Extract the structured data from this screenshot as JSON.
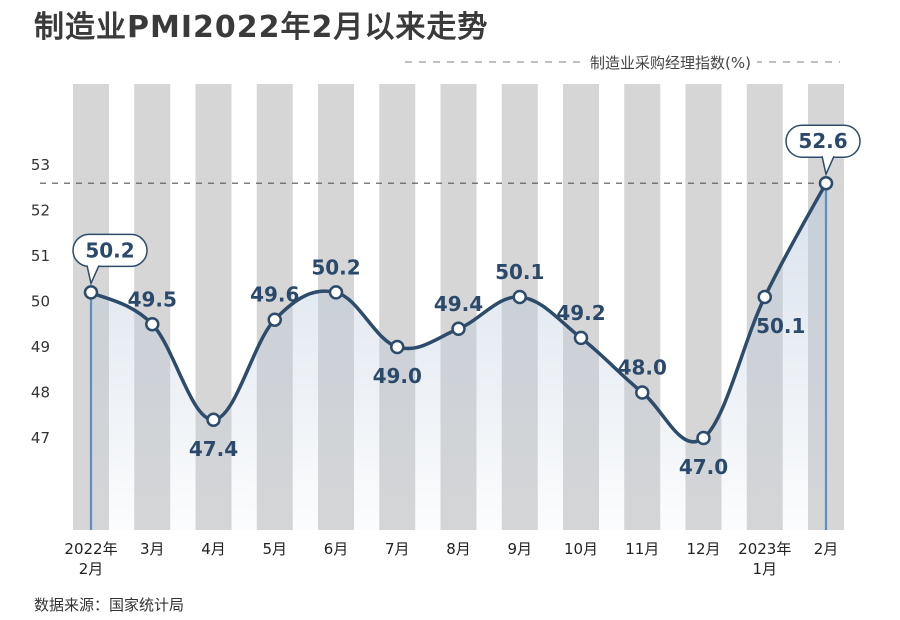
{
  "title": "制造业PMI2022年2月以来走势",
  "source": "数据来源：国家统计局",
  "colors": {
    "line": "#2d4b6b",
    "column": "#d6d6d6",
    "area": "#b9c9dc",
    "marker_fill": "#ffffff",
    "accent_line": "#5b8fc0"
  },
  "chart_data": {
    "type": "line",
    "title": "制造业PMI2022年2月以来走势",
    "legend": [
      "制造业采购经理指数(%)"
    ],
    "legend_position": "top-right",
    "categories": [
      [
        "2022年",
        "2月"
      ],
      [
        "3月"
      ],
      [
        "4月"
      ],
      [
        "5月"
      ],
      [
        "6月"
      ],
      [
        "7月"
      ],
      [
        "8月"
      ],
      [
        "9月"
      ],
      [
        "10月"
      ],
      [
        "11月"
      ],
      [
        "12月"
      ],
      [
        "2023年",
        "1月"
      ],
      [
        "2月"
      ]
    ],
    "series": [
      {
        "name": "制造业采购经理指数(%)",
        "values": [
          50.2,
          49.5,
          47.4,
          49.6,
          50.2,
          49.0,
          49.4,
          50.1,
          49.2,
          48.0,
          47.0,
          50.1,
          52.6
        ]
      }
    ],
    "yticks": [
      47,
      48,
      49,
      50,
      51,
      52,
      53
    ],
    "ylim": [
      44.5,
      54.5
    ],
    "reference_line": 52.6,
    "highlighted_points": [
      0,
      12
    ]
  }
}
